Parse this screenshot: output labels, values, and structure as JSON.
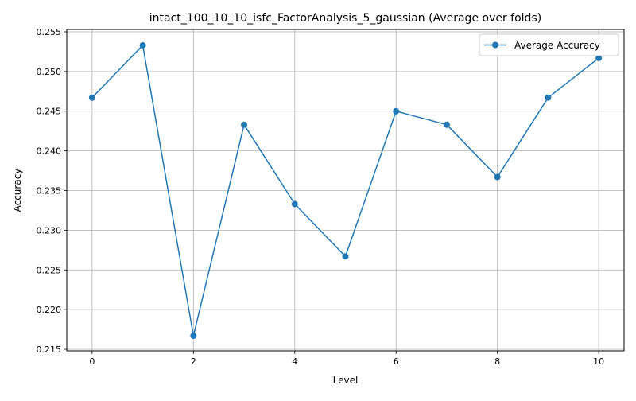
{
  "chart_data": {
    "type": "line",
    "title": "intact_100_10_10_isfc_FactorAnalysis_5_gaussian (Average over folds)",
    "xlabel": "Level",
    "ylabel": "Accuracy",
    "xlim": [
      -0.5,
      10.5
    ],
    "ylim": [
      0.2148,
      0.2553
    ],
    "xticks": [
      0,
      2,
      4,
      6,
      8,
      10
    ],
    "xtick_labels": [
      "0",
      "2",
      "4",
      "6",
      "8",
      "10"
    ],
    "yticks": [
      0.215,
      0.22,
      0.225,
      0.23,
      0.235,
      0.24,
      0.245,
      0.25,
      0.255
    ],
    "ytick_labels": [
      "0.215",
      "0.220",
      "0.225",
      "0.230",
      "0.235",
      "0.240",
      "0.245",
      "0.250",
      "0.255"
    ],
    "grid": true,
    "legend_position": "top-right",
    "series": [
      {
        "name": "Average Accuracy",
        "color": "#1f77b4",
        "marker": "circle",
        "x": [
          0,
          1,
          2,
          3,
          4,
          5,
          6,
          7,
          8,
          9,
          10
        ],
        "y": [
          0.2467,
          0.2533,
          0.2167,
          0.2433,
          0.2333,
          0.2267,
          0.245,
          0.2433,
          0.2367,
          0.2467,
          0.2517
        ]
      }
    ]
  }
}
